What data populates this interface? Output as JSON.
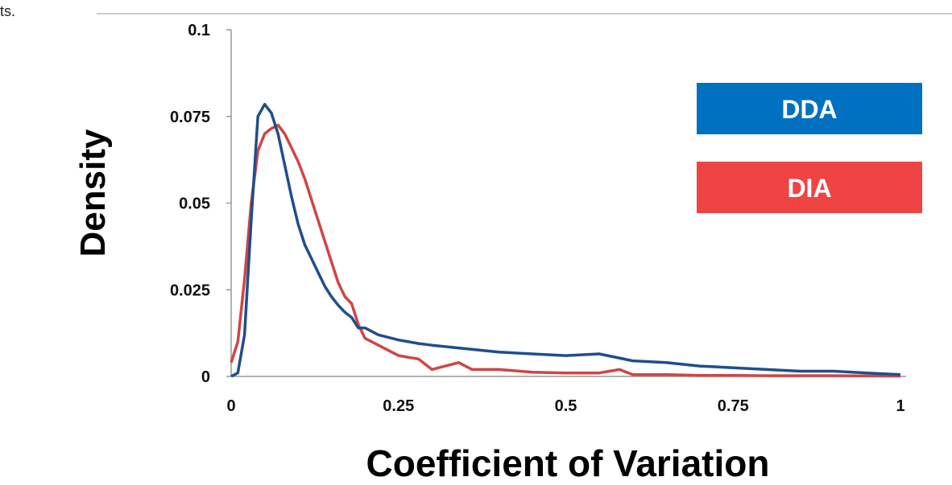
{
  "fragment_text": "ts.",
  "chart_data": {
    "type": "line",
    "xlabel": "Coefficient of Variation",
    "ylabel": "Density",
    "xlim": [
      0,
      1
    ],
    "ylim": [
      0,
      0.1
    ],
    "x_ticks": [
      "0",
      "0.25",
      "0.5",
      "0.75",
      "1"
    ],
    "y_ticks": [
      "0",
      "0.025",
      "0.05",
      "0.075",
      "0.1"
    ],
    "series": [
      {
        "name": "DDA",
        "color": "#1f4e8c",
        "legend_color": "#0070c0",
        "x": [
          0,
          0.01,
          0.02,
          0.03,
          0.04,
          0.05,
          0.06,
          0.07,
          0.08,
          0.09,
          0.1,
          0.11,
          0.12,
          0.13,
          0.14,
          0.15,
          0.16,
          0.17,
          0.18,
          0.19,
          0.2,
          0.22,
          0.25,
          0.28,
          0.3,
          0.35,
          0.4,
          0.45,
          0.5,
          0.55,
          0.6,
          0.65,
          0.7,
          0.75,
          0.8,
          0.85,
          0.9,
          0.95,
          1.0
        ],
        "y": [
          0,
          0.001,
          0.012,
          0.045,
          0.075,
          0.0785,
          0.076,
          0.07,
          0.061,
          0.052,
          0.044,
          0.038,
          0.034,
          0.03,
          0.026,
          0.023,
          0.0205,
          0.0185,
          0.017,
          0.014,
          0.014,
          0.012,
          0.0105,
          0.0095,
          0.009,
          0.008,
          0.007,
          0.0065,
          0.006,
          0.0065,
          0.0045,
          0.004,
          0.003,
          0.0025,
          0.002,
          0.0015,
          0.0015,
          0.001,
          0.0005
        ]
      },
      {
        "name": "DIA",
        "color": "#d04545",
        "legend_color": "#ef4444",
        "x": [
          0,
          0.01,
          0.02,
          0.03,
          0.04,
          0.05,
          0.06,
          0.07,
          0.08,
          0.09,
          0.1,
          0.11,
          0.12,
          0.13,
          0.14,
          0.15,
          0.16,
          0.17,
          0.18,
          0.19,
          0.2,
          0.22,
          0.25,
          0.28,
          0.3,
          0.32,
          0.34,
          0.36,
          0.4,
          0.45,
          0.5,
          0.55,
          0.58,
          0.6,
          0.65,
          0.7,
          0.75,
          0.8,
          0.9,
          1.0
        ],
        "y": [
          0.004,
          0.01,
          0.028,
          0.05,
          0.065,
          0.07,
          0.0715,
          0.0725,
          0.07,
          0.066,
          0.062,
          0.057,
          0.051,
          0.045,
          0.039,
          0.033,
          0.027,
          0.023,
          0.021,
          0.015,
          0.011,
          0.009,
          0.006,
          0.005,
          0.002,
          0.003,
          0.004,
          0.002,
          0.002,
          0.0012,
          0.001,
          0.001,
          0.002,
          0.0005,
          0.0005,
          0.0003,
          0.0003,
          0.0002,
          0.0002,
          0.0001
        ]
      }
    ],
    "legend": [
      "DDA",
      "DIA"
    ],
    "legend_position": "right"
  }
}
